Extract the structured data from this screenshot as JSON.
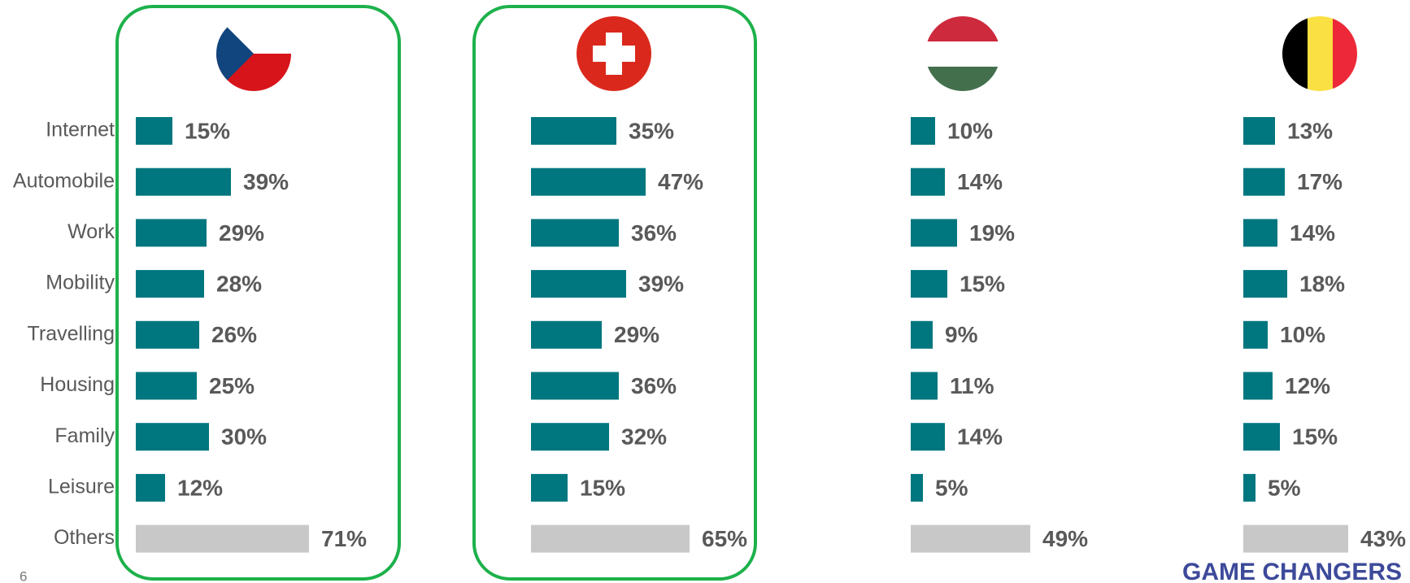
{
  "chart_data": [
    {
      "type": "bar",
      "highlight": true,
      "categories": [
        "Internet",
        "Automobile",
        "Work",
        "Mobility",
        "Travelling",
        "Housing",
        "Family",
        "Leisure",
        "Others"
      ],
      "values": [
        15,
        39,
        29,
        28,
        26,
        25,
        30,
        12,
        71
      ],
      "value_labels": [
        "15%",
        "39%",
        "29%",
        "28%",
        "26%",
        "25%",
        "30%",
        "12%",
        "71%"
      ],
      "colors": [
        "#00767f",
        "#00767f",
        "#00767f",
        "#00767f",
        "#00767f",
        "#00767f",
        "#00767f",
        "#00767f",
        "#c8c8c8"
      ]
    },
    {
      "type": "bar",
      "highlight": true,
      "values": [
        35,
        47,
        36,
        39,
        29,
        36,
        32,
        15,
        65
      ],
      "value_labels": [
        "35%",
        "47%",
        "36%",
        "39%",
        "29%",
        "36%",
        "32%",
        "15%",
        "65%"
      ],
      "colors": [
        "#00767f",
        "#00767f",
        "#00767f",
        "#00767f",
        "#00767f",
        "#00767f",
        "#00767f",
        "#00767f",
        "#c8c8c8"
      ]
    },
    {
      "type": "bar",
      "highlight": false,
      "values": [
        10,
        14,
        19,
        15,
        9,
        11,
        14,
        5,
        49
      ],
      "value_labels": [
        "10%",
        "14%",
        "19%",
        "15%",
        "9%",
        "11%",
        "14%",
        "5%",
        "49%"
      ],
      "colors": [
        "#00767f",
        "#00767f",
        "#00767f",
        "#00767f",
        "#00767f",
        "#00767f",
        "#00767f",
        "#00767f",
        "#c8c8c8"
      ]
    },
    {
      "type": "bar",
      "highlight": false,
      "values": [
        13,
        17,
        14,
        18,
        10,
        12,
        15,
        5,
        43
      ],
      "value_labels": [
        "13%",
        "17%",
        "14%",
        "18%",
        "10%",
        "12%",
        "15%",
        "5%",
        "43%"
      ],
      "colors": [
        "#00767f",
        "#00767f",
        "#00767f",
        "#00767f",
        "#00767f",
        "#00767f",
        "#00767f",
        "#00767f",
        "#c8c8c8"
      ]
    }
  ],
  "page_number": "6",
  "brand": "GAME CHANGERS"
}
